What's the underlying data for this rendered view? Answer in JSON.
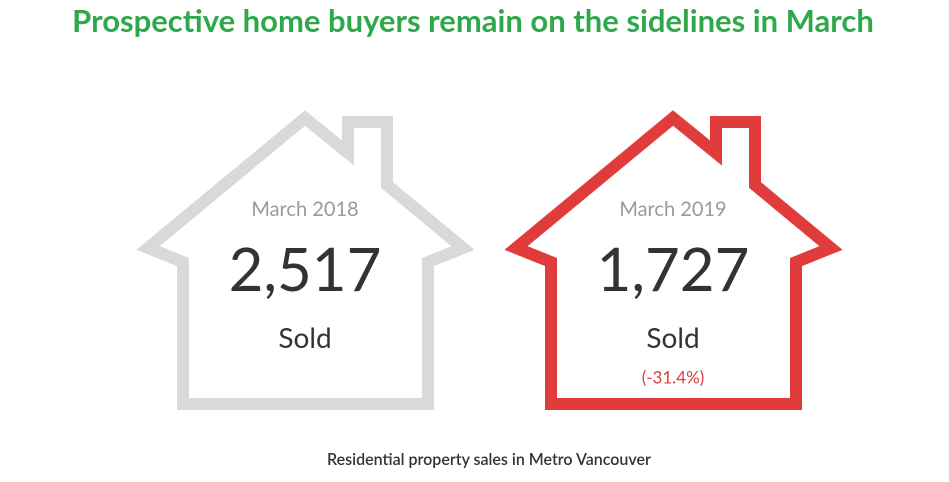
{
  "title": "Prospective home buyers remain on the sidelines in March",
  "cards": [
    {
      "period": "March 2018",
      "value": "2,517",
      "label": "Sold"
    },
    {
      "period": "March 2019",
      "value": "1,727",
      "label": "Sold",
      "change": "(-31.4%)"
    }
  ],
  "footnote": "Residential property sales in Metro Vancouver"
}
